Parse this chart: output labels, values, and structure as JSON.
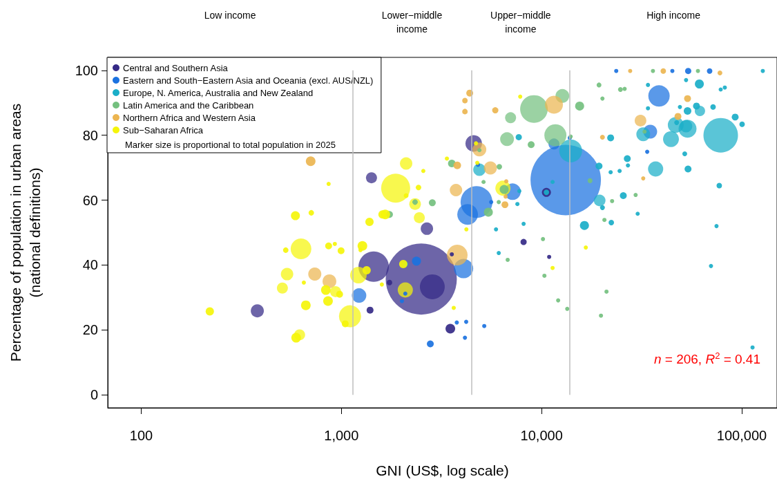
{
  "chart_data": {
    "type": "bubble",
    "xlabel": "GNI (US$, log scale)",
    "ylabel": "Percentage of population in urban areas\n(national definitions)",
    "log": "x",
    "grid": false,
    "legend": "top left",
    "marker": "circle",
    "xlim": [
      68,
      150000
    ],
    "ylim": [
      -4,
      104
    ],
    "xticks": [
      100,
      {
        "value": 1000,
        "label": "1,000"
      },
      {
        "value": 10000,
        "label": "10,000"
      },
      {
        "value": 100000,
        "label": "100,000"
      }
    ],
    "yticks": [
      0,
      20,
      40,
      60,
      80,
      100
    ],
    "ref_lines": [
      {
        "axis": "x",
        "value": 1135,
        "color": "#bebebe"
      },
      {
        "axis": "x",
        "value": 4465,
        "color": "#bebebe"
      },
      {
        "axis": "x",
        "value": 13845,
        "color": "#bebebe"
      }
    ],
    "annotations": [
      "Low income",
      "Lower−middle\nincome",
      "Upper−middle\nincome",
      "High income",
      "Marker size is proportional to total population in 2025",
      "n = 206, R$^{2}$ = 0.41"
    ],
    "series": [
      {
        "name": "Central and Southern Asia",
        "color": "#352a87",
        "x": [
          380,
          1413,
          4580,
          2673,
          1449,
          1390,
          1738,
          2845,
          2505,
          3560,
          3500,
          8130,
          10910,
          10570
        ],
        "values": [
          25.9,
          66.9,
          77.5,
          51.2,
          39.5,
          26.1,
          34.6,
          33.3,
          35.7,
          43.3,
          20.4,
          47.1,
          42.5,
          62.4
        ],
        "sizes": [
          0.034,
          0.024,
          0.0543,
          0.0305,
          0.182,
          0.0094,
          0.006,
          0.122,
          1,
          0.0015,
          0.0185,
          0.0076,
          0.0015,
          0.016
        ]
      },
      {
        "name": "Eastern and South−Eastern Asia and Oceania (excl. AUS/NZL)",
        "color": "#1b72e0",
        "x": [
          4810,
          7160,
          4730,
          4270,
          5600,
          1225,
          2371,
          2085,
          2006,
          4075,
          3770,
          4200,
          4140,
          2780,
          5170,
          23600,
          45000,
          54000,
          69100,
          38600,
          34900,
          13830,
          11530,
          33700,
          13200
        ],
        "values": [
          70.9,
          62.6,
          59.4,
          55.6,
          59.4,
          30.6,
          41.2,
          31.2,
          28.9,
          38.9,
          22.3,
          22.5,
          17.6,
          15.7,
          21.2,
          99.8,
          99.8,
          99.8,
          99.8,
          92.1,
          81.1,
          79.2,
          77.3,
          74.9,
          66.2
        ],
        "sizes": [
          0.0015,
          0.0543,
          0.2,
          0.0848,
          0.0015,
          0.0416,
          0.016,
          0.0015,
          0.0015,
          0.0739,
          0.0015,
          0.0015,
          0.0015,
          0.0094,
          0.0015,
          0.0015,
          0.0015,
          0.0076,
          0.006,
          0.0906,
          0.0377,
          0.0015,
          0.024,
          0.0015,
          0.98
        ]
      },
      {
        "name": "Europe, N. America, Australia and New Zealand",
        "color": "#1aaec8",
        "x": [
          7690,
          4890,
          7740,
          7570,
          8130,
          5920,
          2085,
          6110,
          127400,
          52700,
          61400,
          78500,
          82300,
          34000,
          34000,
          49100,
          53600,
          59400,
          61800,
          71900,
          92700,
          100400,
          32200,
          46800,
          47300,
          53600,
          52700,
          44300,
          78500,
          22130,
          13970,
          51900,
          26800,
          19360,
          27000,
          22130,
          24540,
          37130,
          53900,
          77200,
          10570,
          11350,
          19500,
          20140,
          25600,
          30200,
          16370,
          22300,
          74800,
          70200,
          113200
        ],
        "values": [
          79.4,
          69.4,
          62.8,
          58.8,
          52.7,
          51.0,
          40.3,
          43.7,
          99.8,
          97.0,
          95.8,
          94.1,
          94.7,
          95.5,
          88.3,
          88.7,
          87.5,
          89.0,
          87.5,
          88.7,
          85.6,
          83.4,
          80.3,
          83.2,
          83.9,
          82.0,
          82.8,
          78.8,
          80.0,
          79.2,
          75.2,
          74.3,
          72.8,
          70.5,
          70.7,
          68.6,
          69.0,
          69.6,
          69.6,
          64.5,
          62.4,
          65.6,
          59.9,
          57.7,
          61.4,
          55.8,
          52.2,
          53.1,
          52.0,
          39.7,
          14.6
        ],
        "sizes": [
          0.0076,
          0.0305,
          0.0024,
          0.0034,
          0.0034,
          0.0024,
          0.006,
          0.0034,
          0.0015,
          0.0015,
          0.016,
          0.0015,
          0.0015,
          0.0015,
          0.0015,
          0.0015,
          0.0114,
          0.0094,
          0.0212,
          0.006,
          0.0094,
          0.006,
          0.0377,
          0.05,
          0.0046,
          0.0637,
          0.0305,
          0.05,
          0.236,
          0.0094,
          0.103,
          0.0046,
          0.0094,
          0.0094,
          0.0015,
          0.0024,
          0.0034,
          0.0456,
          0.0094,
          0.006,
          0.006,
          0.0015,
          0.027,
          0.0046,
          0.0094,
          0.0024,
          0.016,
          0.006,
          0.0015,
          0.0015,
          0.0015
        ]
      },
      {
        "name": "Latin America and the Caribbean",
        "color": "#74c07f",
        "x": [
          9160,
          7000,
          6720,
          8870,
          11720,
          12700,
          15490,
          4890,
          3560,
          6150,
          5130,
          6500,
          5420,
          6110,
          2333,
          2845,
          1738,
          6770,
          10160,
          10330,
          36000,
          60400,
          19360,
          24770,
          26000,
          20140,
          32700,
          13970,
          17460,
          22500,
          29500,
          20600,
          21100,
          12100,
          13430,
          19800
        ],
        "values": [
          88.1,
          85.4,
          78.8,
          77.1,
          80.0,
          92.1,
          89.0,
          75.4,
          71.3,
          70.3,
          65.6,
          63.3,
          56.3,
          59.4,
          59.4,
          59.2,
          55.6,
          41.6,
          48.0,
          36.7,
          99.8,
          99.8,
          95.5,
          94.1,
          94.3,
          91.3,
          81.1,
          79.6,
          66.0,
          59.7,
          61.6,
          53.9,
          31.8,
          29.1,
          26.5,
          24.4
        ],
        "sizes": [
          0.151,
          0.024,
          0.0377,
          0.0094,
          0.0965,
          0.0377,
          0.016,
          0.0034,
          0.0114,
          0.006,
          0.0015,
          0.016,
          0.016,
          0.0034,
          0.006,
          0.0094,
          0.0094,
          0.0015,
          0.0015,
          0.0015,
          0.0015,
          0.0015,
          0.0046,
          0.0046,
          0.0015,
          0.0015,
          0.0015,
          0.0034,
          0.0046,
          0.0015,
          0.0015,
          0.0024,
          0.0015,
          0.0015,
          0.0015,
          0.0015
        ]
      },
      {
        "name": "Northern Africa and Western Asia",
        "color": "#ecb550",
        "x": [
          702,
          736,
          871,
          4375,
          4140,
          4140,
          11530,
          5870,
          4890,
          3790,
          5550,
          3735,
          6660,
          6610,
          6560,
          3790,
          27700,
          40550,
          77800,
          53600,
          31200,
          48000,
          20140,
          32200
        ],
        "values": [
          72.0,
          37.2,
          35.0,
          93.0,
          90.7,
          87.3,
          89.4,
          87.7,
          75.6,
          70.7,
          69.9,
          63.1,
          65.8,
          61.1,
          58.6,
          43.1,
          99.8,
          99.8,
          99.2,
          91.3,
          84.5,
          85.8,
          79.4,
          66.7
        ],
        "sizes": [
          0.0185,
          0.034,
          0.0377,
          0.0094,
          0.006,
          0.006,
          0.0637,
          0.0076,
          0.0377,
          0.0114,
          0.034,
          0.0305,
          0.0034,
          0.0034,
          0.0094,
          0.0848,
          0.0024,
          0.006,
          0.0046,
          0.0094,
          0.027,
          0.0094,
          0.0046,
          0.0024
        ]
      },
      {
        "name": "Sub−Saharan Africa",
        "color": "#f5f50a",
        "x": [
          863,
          589,
          707,
          628,
          527,
          863,
          927,
          535,
          649,
          507,
          836,
          935,
          857,
          664,
          220,
          618,
          594,
          7820,
          4700,
          3365,
          4770,
          2105,
          2565,
          1866,
          2427,
          2105,
          6410,
          4210,
          2450,
          2333,
          1656,
          1604,
          1381,
          996,
          1273,
          1245,
          1336,
          1216,
          979,
          1104,
          1045,
          1592,
          2037,
          2085,
          3640,
          11350,
          16630
        ],
        "values": [
          65.0,
          55.2,
          56.1,
          45.0,
          44.6,
          45.9,
          46.5,
          37.2,
          34.6,
          32.9,
          32.3,
          31.8,
          28.9,
          27.6,
          25.7,
          18.5,
          17.6,
          91.9,
          77.5,
          72.8,
          71.5,
          71.3,
          69.0,
          63.7,
          63.9,
          61.4,
          63.7,
          51.0,
          54.6,
          58.8,
          55.6,
          55.6,
          53.3,
          44.4,
          45.9,
          44.6,
          38.4,
          36.9,
          31.0,
          24.2,
          21.9,
          34.0,
          40.3,
          32.3,
          26.8,
          39.1,
          45.4
        ],
        "sizes": [
          0.0034,
          0.016,
          0.006,
          0.0848,
          0.006,
          0.0094,
          0.0034,
          0.0305,
          0.0034,
          0.024,
          0.0185,
          0.024,
          0.0185,
          0.0185,
          0.0136,
          0.024,
          0.0185,
          0.0034,
          0.0015,
          0.0015,
          0.0015,
          0.0305,
          0.0015,
          0.166,
          0.006,
          0.0046,
          0.0456,
          0.0034,
          0.024,
          0.027,
          0.0185,
          0.0136,
          0.0136,
          0.0094,
          0.0185,
          0.0024,
          0.0136,
          0.0543,
          0.0094,
          0.0965,
          0.0094,
          0.0015,
          0.0136,
          0.0456,
          0.0024,
          0.0024,
          0.0015
        ]
      }
    ]
  }
}
